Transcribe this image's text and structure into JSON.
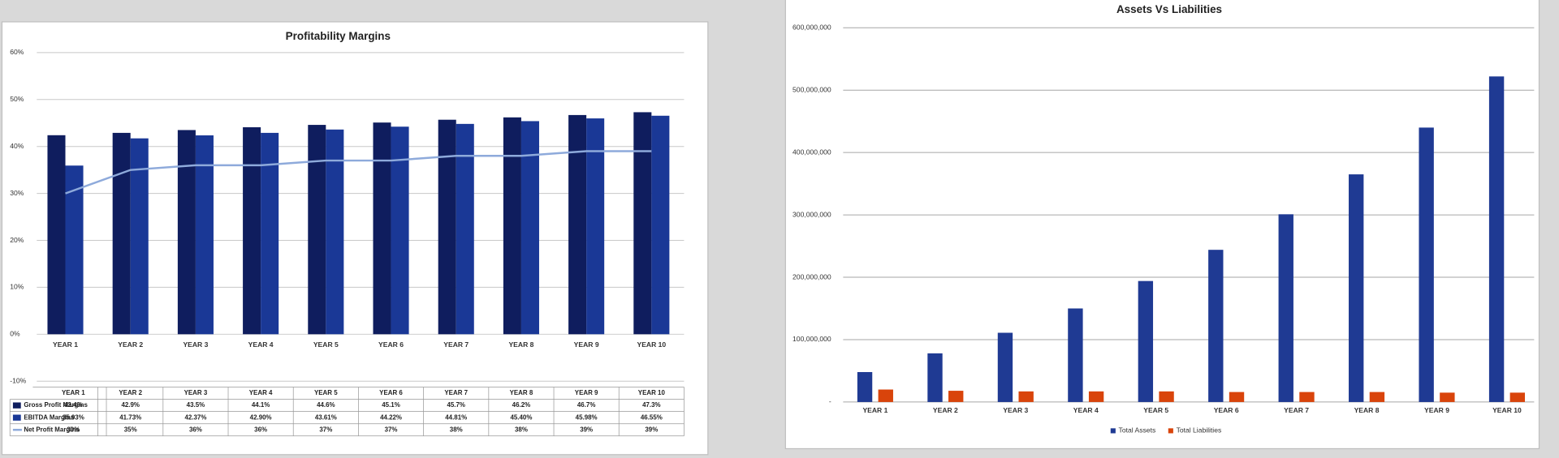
{
  "chart_data": [
    {
      "type": "combo",
      "title": "Profitability Margins",
      "categories": [
        "YEAR 1",
        "YEAR 2",
        "YEAR 3",
        "YEAR 4",
        "YEAR 5",
        "YEAR 6",
        "YEAR 7",
        "YEAR 8",
        "YEAR 9",
        "YEAR 10"
      ],
      "series": [
        {
          "name": "Gross Profit Margins",
          "type": "bar",
          "color": "#0f1d5e",
          "values": [
            42.4,
            42.9,
            43.5,
            44.1,
            44.6,
            45.1,
            45.7,
            46.2,
            46.7,
            47.3
          ],
          "value_labels": [
            "42.4%",
            "42.9%",
            "43.5%",
            "44.1%",
            "44.6%",
            "45.1%",
            "45.7%",
            "46.2%",
            "46.7%",
            "47.3%"
          ]
        },
        {
          "name": "EBITDA Margins",
          "type": "bar",
          "color": "#1a3896",
          "values": [
            35.93,
            41.73,
            42.37,
            42.9,
            43.61,
            44.22,
            44.81,
            45.4,
            45.98,
            46.55
          ],
          "value_labels": [
            "35.93%",
            "41.73%",
            "42.37%",
            "42.90%",
            "43.61%",
            "44.22%",
            "44.81%",
            "45.40%",
            "45.98%",
            "46.55%"
          ]
        },
        {
          "name": "Net Profit Margins",
          "type": "line",
          "color": "#8eaadb",
          "values": [
            30,
            35,
            36,
            36,
            37,
            37,
            38,
            38,
            39,
            39
          ],
          "value_labels": [
            "30%",
            "35%",
            "36%",
            "36%",
            "37%",
            "37%",
            "38%",
            "38%",
            "39%",
            "39%"
          ]
        }
      ],
      "ylim": [
        -10,
        60
      ],
      "yticks": [
        {
          "value": -10,
          "label": "-10%"
        },
        {
          "value": 0,
          "label": "0%"
        },
        {
          "value": 10,
          "label": "10%"
        },
        {
          "value": 20,
          "label": "20%"
        },
        {
          "value": 30,
          "label": "30%"
        },
        {
          "value": 40,
          "label": "40%"
        },
        {
          "value": 50,
          "label": "50%"
        },
        {
          "value": 60,
          "label": "60%"
        }
      ],
      "grid": true,
      "data_table": true
    },
    {
      "type": "bar",
      "title": "Assets Vs Liabilities",
      "categories": [
        "YEAR 1",
        "YEAR 2",
        "YEAR 3",
        "YEAR 4",
        "YEAR 5",
        "YEAR 6",
        "YEAR 7",
        "YEAR 8",
        "YEAR 9",
        "YEAR 10"
      ],
      "series": [
        {
          "name": "Total Assets",
          "color": "#1f3a93",
          "values": [
            48000000,
            78000000,
            111000000,
            150000000,
            194000000,
            244000000,
            301000000,
            365000000,
            440000000,
            522000000
          ]
        },
        {
          "name": "Total Liabilities",
          "color": "#d9440b",
          "values": [
            20000000,
            18000000,
            17000000,
            17000000,
            17000000,
            16000000,
            16000000,
            16000000,
            15000000,
            15000000
          ]
        }
      ],
      "ylim": [
        0,
        600000000
      ],
      "yticks": [
        {
          "value": 0,
          "label": "-"
        },
        {
          "value": 100000000,
          "label": "100,000,000"
        },
        {
          "value": 200000000,
          "label": "200,000,000"
        },
        {
          "value": 300000000,
          "label": "300,000,000"
        },
        {
          "value": 400000000,
          "label": "400,000,000"
        },
        {
          "value": 500000000,
          "label": "500,000,000"
        },
        {
          "value": 600000000,
          "label": "600,000,000"
        }
      ],
      "grid": true,
      "legend": "bottom"
    }
  ]
}
